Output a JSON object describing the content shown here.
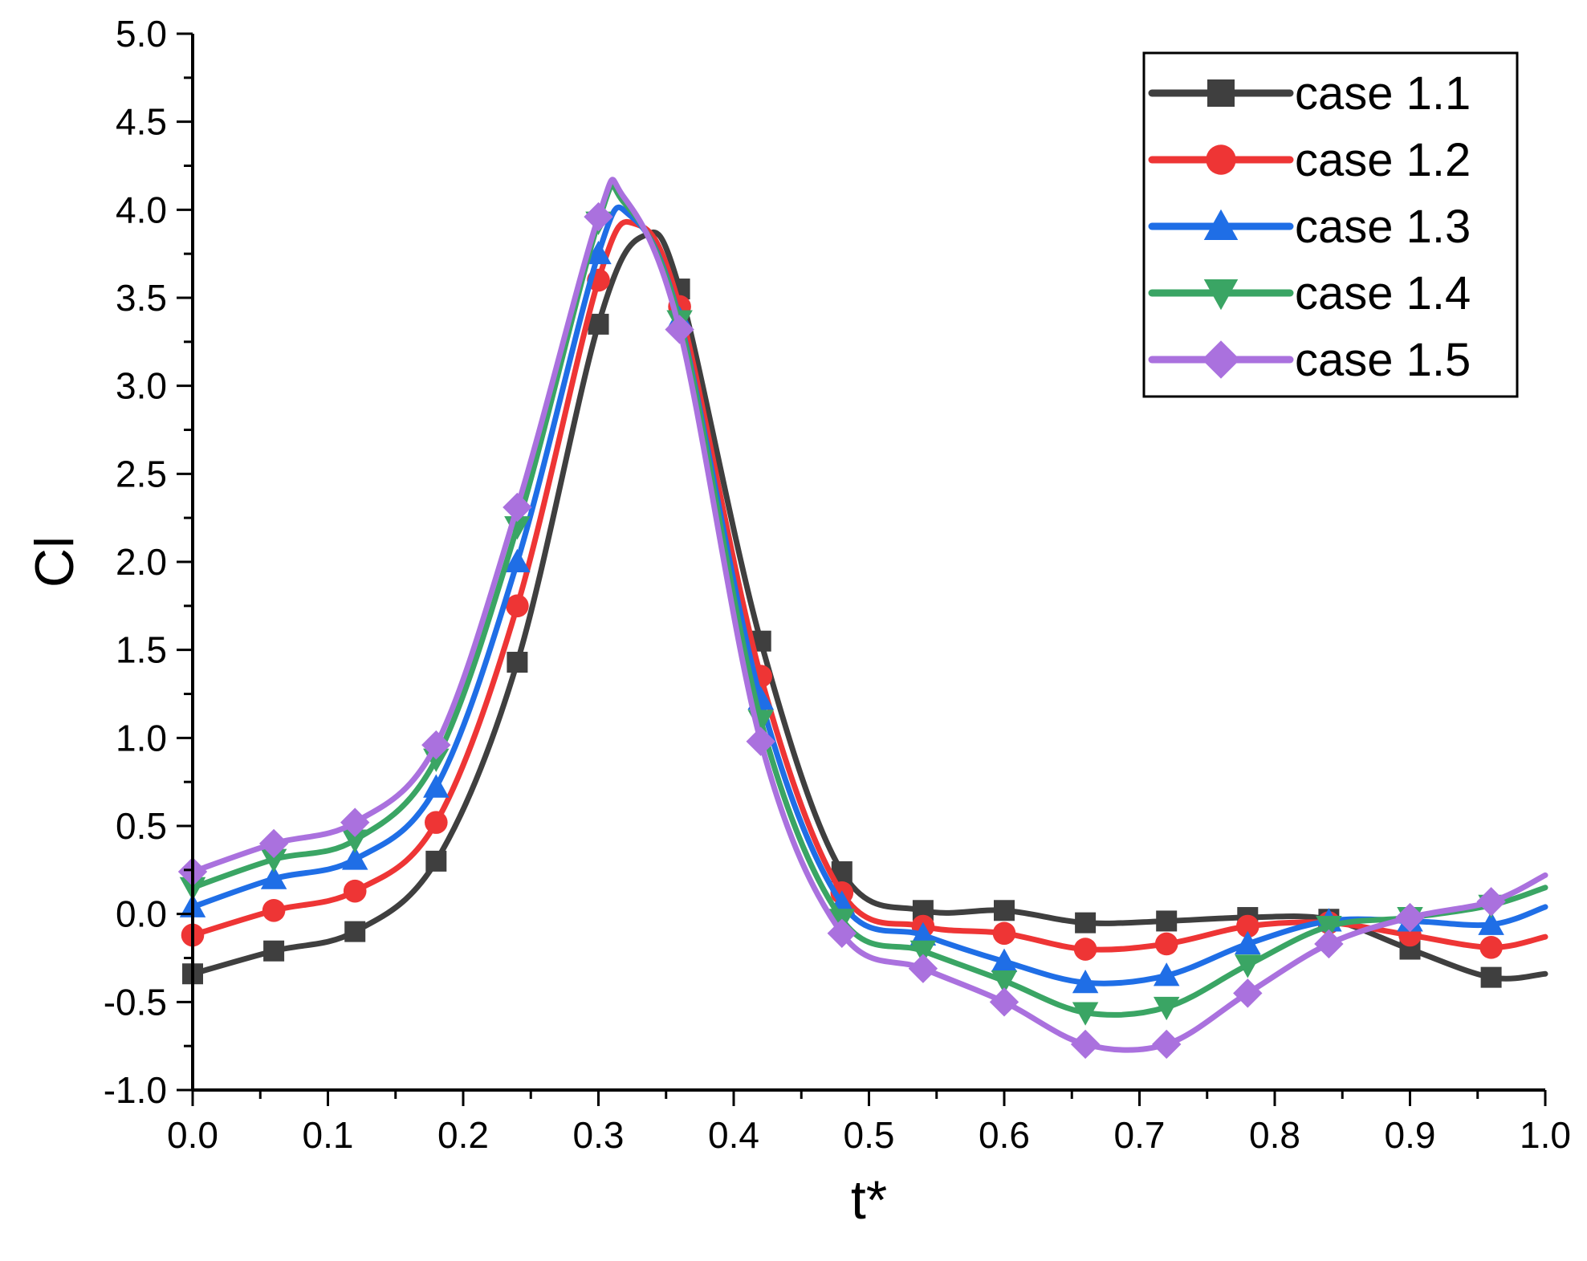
{
  "chart_data": {
    "type": "line",
    "title": "",
    "xlabel": "t*",
    "ylabel": "Cl",
    "xlim": [
      0.0,
      1.0
    ],
    "ylim": [
      -1.0,
      5.0
    ],
    "xticks": [
      "0.0",
      "0.1",
      "0.2",
      "0.3",
      "0.4",
      "0.5",
      "0.6",
      "0.7",
      "0.8",
      "0.9",
      "1.0"
    ],
    "yticks": [
      "-1.0",
      "-0.5",
      "0.0",
      "0.5",
      "1.0",
      "1.5",
      "2.0",
      "2.5",
      "3.0",
      "3.5",
      "4.0",
      "4.5",
      "5.0"
    ],
    "grid": false,
    "legend_position": "top-right",
    "x": [
      0.0,
      0.06,
      0.12,
      0.18,
      0.24,
      0.3,
      0.36,
      0.42,
      0.48,
      0.54,
      0.6,
      0.66,
      0.72,
      0.78,
      0.84,
      0.9,
      0.96,
      1.0
    ],
    "series": [
      {
        "name": "case 1.1",
        "color": "#3f3f3f",
        "marker": "square",
        "values": [
          -0.34,
          -0.21,
          -0.1,
          0.3,
          1.43,
          3.35,
          3.55,
          1.55,
          0.24,
          0.02,
          0.02,
          -0.05,
          -0.04,
          -0.02,
          -0.03,
          -0.2,
          -0.36,
          -0.34
        ],
        "peak": {
          "x": 0.333,
          "y": 3.85
        }
      },
      {
        "name": "case 1.2",
        "color": "#ee3535",
        "marker": "circle",
        "values": [
          -0.12,
          0.02,
          0.13,
          0.52,
          1.75,
          3.6,
          3.45,
          1.35,
          0.12,
          -0.07,
          -0.11,
          -0.2,
          -0.17,
          -0.07,
          -0.05,
          -0.12,
          -0.19,
          -0.13
        ],
        "peak": {
          "x": 0.327,
          "y": 3.92
        }
      },
      {
        "name": "case 1.3",
        "color": "#1f6ee6",
        "marker": "triangle-up",
        "values": [
          0.04,
          0.2,
          0.31,
          0.72,
          2.0,
          3.75,
          3.38,
          1.22,
          0.06,
          -0.12,
          -0.27,
          -0.39,
          -0.35,
          -0.17,
          -0.04,
          -0.04,
          -0.06,
          0.04
        ],
        "peak": {
          "x": 0.323,
          "y": 3.97
        }
      },
      {
        "name": "case 1.4",
        "color": "#3aa564",
        "marker": "triangle-down",
        "values": [
          0.15,
          0.31,
          0.42,
          0.88,
          2.2,
          3.93,
          3.37,
          1.1,
          -0.03,
          -0.21,
          -0.38,
          -0.56,
          -0.53,
          -0.29,
          -0.07,
          -0.02,
          0.05,
          0.15
        ],
        "peak": {
          "x": 0.318,
          "y": 4.05
        }
      },
      {
        "name": "case 1.5",
        "color": "#aa71de",
        "marker": "diamond",
        "values": [
          0.24,
          0.4,
          0.52,
          0.96,
          2.31,
          3.96,
          3.32,
          0.98,
          -0.11,
          -0.31,
          -0.5,
          -0.74,
          -0.74,
          -0.45,
          -0.17,
          -0.02,
          0.07,
          0.22
        ],
        "peak": {
          "x": 0.318,
          "y": 4.08
        }
      }
    ]
  }
}
